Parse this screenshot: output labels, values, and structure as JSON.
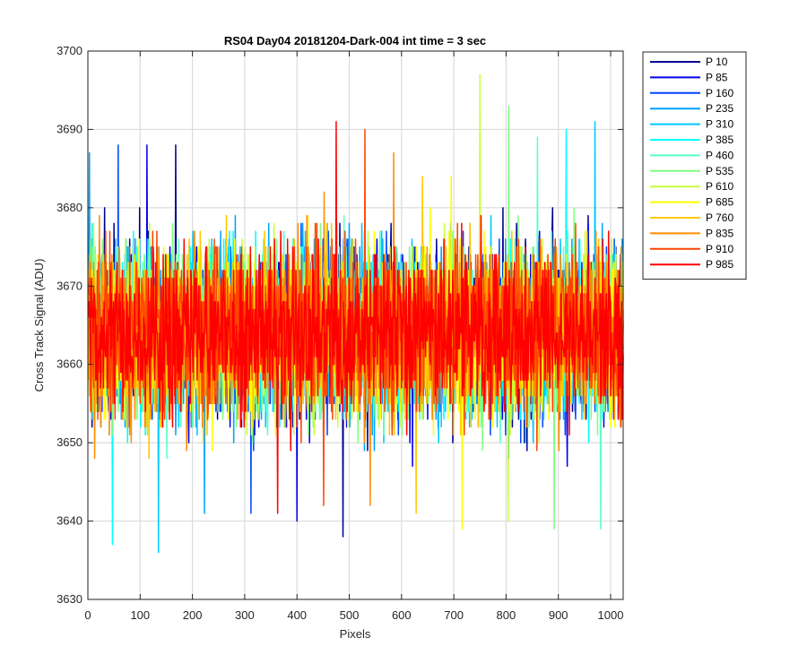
{
  "chart_data": {
    "type": "line",
    "title": "RS04 Day04 20181204-Dark-004 int time = 3 sec",
    "xlabel": "Pixels",
    "ylabel": "Cross Track Signal (ADU)",
    "xlim": [
      0,
      1024
    ],
    "ylim": [
      3630,
      3700
    ],
    "xticks": [
      0,
      100,
      200,
      300,
      400,
      500,
      600,
      700,
      800,
      900,
      1000
    ],
    "yticks": [
      3630,
      3640,
      3650,
      3660,
      3670,
      3680,
      3690,
      3700
    ],
    "grid": true,
    "legend_position": "outside-right",
    "x": "pixels 1 to 1024 (one sample per pixel)",
    "mean": 3664,
    "series": [
      {
        "name": "P 10",
        "color": "#00008f",
        "range": [
          3638,
          3688
        ]
      },
      {
        "name": "P 85",
        "color": "#0000ea",
        "range": [
          3640,
          3688
        ]
      },
      {
        "name": "P 160",
        "color": "#0047ff",
        "range": [
          3641,
          3688
        ]
      },
      {
        "name": "P 235",
        "color": "#00a3ff",
        "range": [
          3641,
          3687
        ]
      },
      {
        "name": "P 310",
        "color": "#00c8ff",
        "range": [
          3636,
          3691
        ]
      },
      {
        "name": "P 385",
        "color": "#00ffff",
        "range": [
          3637,
          3690
        ]
      },
      {
        "name": "P 460",
        "color": "#5affc8",
        "range": [
          3639,
          3689
        ]
      },
      {
        "name": "P 535",
        "color": "#80ff80",
        "range": [
          3639,
          3693
        ]
      },
      {
        "name": "P 610",
        "color": "#c8ff38",
        "range": [
          3640,
          3697
        ]
      },
      {
        "name": "P 685",
        "color": "#ffff00",
        "range": [
          3639,
          3684
        ]
      },
      {
        "name": "P 760",
        "color": "#ffc800",
        "range": [
          3641,
          3684
        ]
      },
      {
        "name": "P 835",
        "color": "#ff8c00",
        "range": [
          3642,
          3687
        ]
      },
      {
        "name": "P 910",
        "color": "#ff4600",
        "range": [
          3642,
          3690
        ]
      },
      {
        "name": "P 985",
        "color": "#ff0000",
        "range": [
          3641,
          3691
        ]
      }
    ]
  }
}
